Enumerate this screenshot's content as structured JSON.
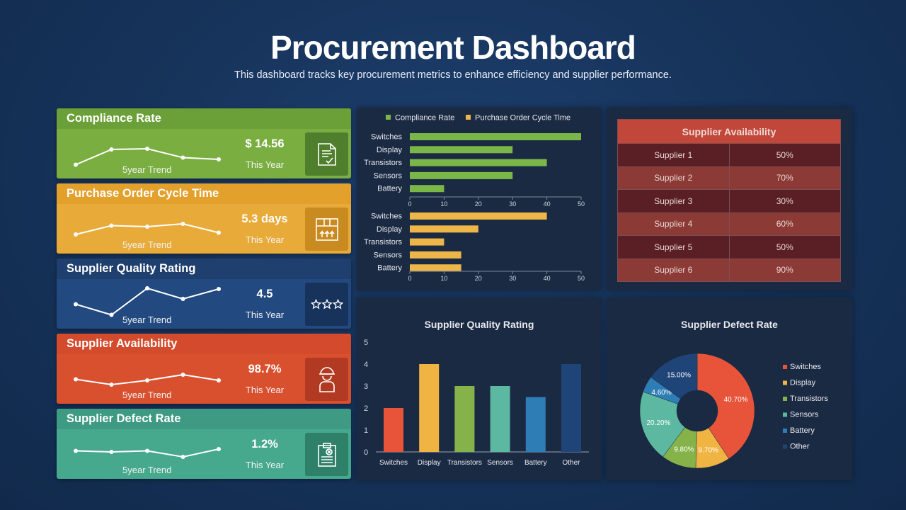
{
  "header": {
    "title": "Procurement Dashboard",
    "subtitle": "This dashboard tracks key procurement metrics to enhance efficiency and supplier performance."
  },
  "kpis": [
    {
      "title": "Compliance Rate",
      "value": "$ 14.56",
      "period": "This Year",
      "trend_label": "5year Trend",
      "icon": "document-check-icon",
      "head_color": "#6b9f38",
      "body_color": "#7aae41",
      "icon_bg": "#4f7f2c"
    },
    {
      "title": "Purchase Order Cycle Time",
      "value": "5.3 days",
      "period": "This Year",
      "trend_label": "5year Trend",
      "icon": "package-box-icon",
      "head_color": "#e3a02b",
      "body_color": "#e8ab3a",
      "icon_bg": "#c98a1f"
    },
    {
      "title": "Supplier Quality Rating",
      "value": "4.5",
      "period": "This Year",
      "trend_label": "5year Trend",
      "icon": "stars-icon",
      "head_color": "#1f3f6e",
      "body_color": "#234a80",
      "icon_bg": "#17335c"
    },
    {
      "title": "Supplier Availability",
      "value": "98.7%",
      "period": "This Year",
      "trend_label": "5year Trend",
      "icon": "worker-icon",
      "head_color": "#d34a2c",
      "body_color": "#d9502f",
      "icon_bg": "#b23a22"
    },
    {
      "title": "Supplier Defect Rate",
      "value": "1.2%",
      "period": "This Year",
      "trend_label": "5year Trend",
      "icon": "clipboard-x-icon",
      "head_color": "#3e9a82",
      "body_color": "#46a88d",
      "icon_bg": "#2f8069"
    }
  ],
  "supplier_availability": {
    "title": "Supplier Availability",
    "rows": [
      {
        "name": "Supplier 1",
        "value": "50%"
      },
      {
        "name": "Supplier 2",
        "value": "70%"
      },
      {
        "name": "Supplier 3",
        "value": "30%"
      },
      {
        "name": "Supplier 4",
        "value": "60%"
      },
      {
        "name": "Supplier 5",
        "value": "50%"
      },
      {
        "name": "Supplier 6",
        "value": "90%"
      }
    ]
  },
  "chart_data": [
    {
      "type": "bar",
      "orientation": "horizontal",
      "categories": [
        "Switches",
        "Display",
        "Transistors",
        "Sensors",
        "Battery"
      ],
      "series": [
        {
          "name": "Compliance Rate",
          "values": [
            50,
            30,
            40,
            30,
            10
          ],
          "color": "#7ab648"
        }
      ],
      "xlim": [
        0,
        50
      ],
      "xticks": [
        0,
        10,
        20,
        30,
        40,
        50
      ],
      "legend": "top"
    },
    {
      "type": "bar",
      "orientation": "horizontal",
      "categories": [
        "Switches",
        "Display",
        "Transistors",
        "Sensors",
        "Battery"
      ],
      "series": [
        {
          "name": "Purchase Order Cycle Time",
          "values": [
            40,
            20,
            10,
            15,
            15
          ],
          "color": "#eeb548"
        }
      ],
      "xlim": [
        0,
        50
      ],
      "xticks": [
        0,
        10,
        20,
        30,
        40,
        50
      ]
    },
    {
      "type": "bar",
      "title": "Supplier Quality Rating",
      "categories": [
        "Switches",
        "Display",
        "Transistors",
        "Sensors",
        "Battery",
        "Other"
      ],
      "values": [
        2,
        4,
        3,
        3,
        2.5,
        4
      ],
      "colors": [
        "#e8543a",
        "#f0b443",
        "#86b24a",
        "#5cb8a0",
        "#2e7db5",
        "#1f4477"
      ],
      "ylim": [
        0,
        5
      ],
      "yticks": [
        0,
        1,
        2,
        3,
        4,
        5
      ]
    },
    {
      "type": "pie",
      "title": "Supplier Defect Rate",
      "donut": true,
      "labels": [
        "Switches",
        "Display",
        "Transistors",
        "Sensors",
        "Battery",
        "Other"
      ],
      "values": [
        40.7,
        9.7,
        9.8,
        20.2,
        4.6,
        15.0
      ],
      "value_labels": [
        "40.70%",
        "9.70%",
        "9.80%",
        "20.20%",
        "4.60%",
        "15.00%"
      ],
      "colors": [
        "#e8543a",
        "#f0b443",
        "#86b24a",
        "#5cb8a0",
        "#2e7db5",
        "#1f4477"
      ],
      "legend": "right"
    }
  ],
  "kpi_trends": [
    [
      0.15,
      0.58,
      0.6,
      0.35,
      0.3
    ],
    [
      0.3,
      0.55,
      0.52,
      0.6,
      0.35
    ],
    [
      0.45,
      0.15,
      0.9,
      0.6,
      0.88
    ],
    [
      0.45,
      0.3,
      0.42,
      0.58,
      0.42
    ],
    [
      0.55,
      0.52,
      0.55,
      0.38,
      0.6
    ]
  ]
}
